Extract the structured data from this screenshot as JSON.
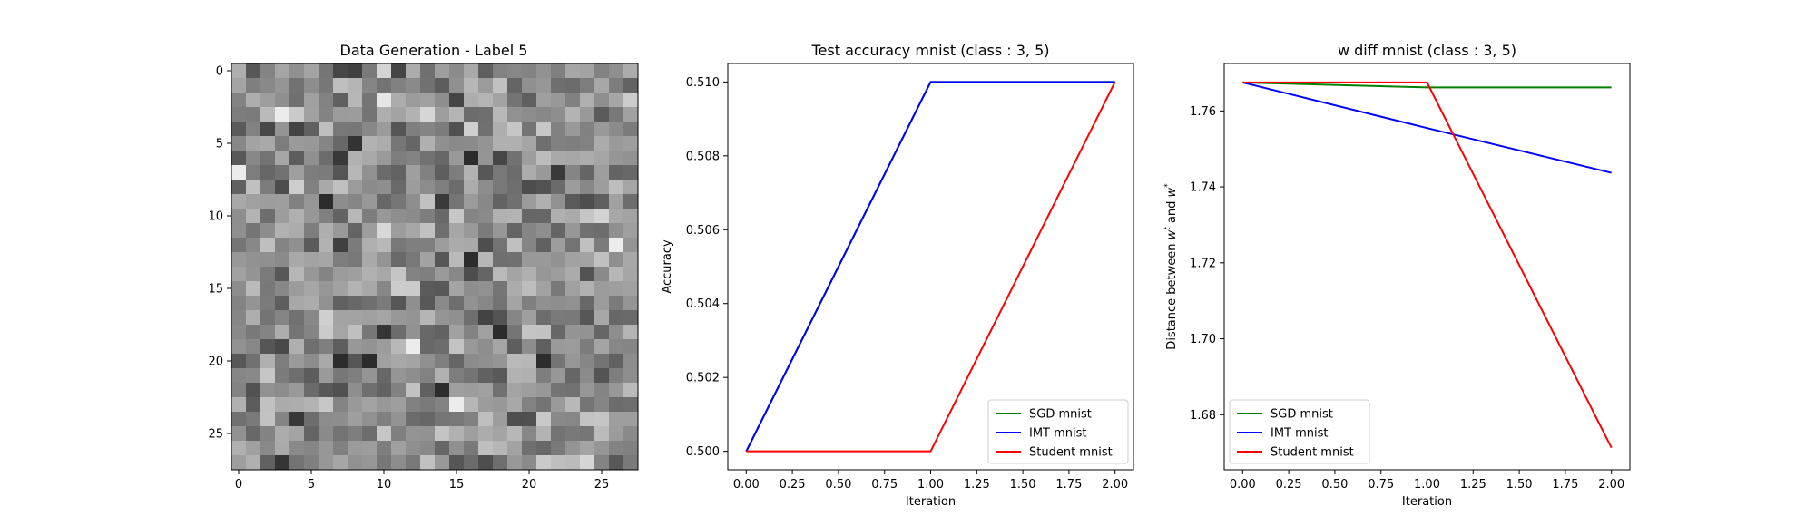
{
  "chart_data": [
    {
      "type": "heatmap",
      "title": "Data Generation - Label 5",
      "colormap": "gray",
      "rows": 28,
      "cols": 28,
      "x_ticks": [
        0,
        5,
        10,
        15,
        20,
        25
      ],
      "y_ticks": [
        0,
        5,
        10,
        15,
        20,
        25
      ],
      "darkest_cells": [
        [
          20,
          7
        ],
        [
          20,
          9
        ],
        [
          20,
          21
        ],
        [
          18,
          18
        ],
        [
          22,
          14
        ],
        [
          6,
          16
        ],
        [
          9,
          6
        ],
        [
          13,
          16
        ]
      ],
      "brightest_cells": [
        [
          7,
          0
        ],
        [
          12,
          26
        ],
        [
          19,
          12
        ],
        [
          23,
          15
        ],
        [
          3,
          3
        ]
      ]
    },
    {
      "type": "line",
      "title": "Test accuracy mnist (class : 3, 5)",
      "xlabel": "Iteration",
      "ylabel": "Accuracy",
      "x": [
        0,
        1,
        2
      ],
      "xlim": [
        -0.1,
        2.1
      ],
      "ylim": [
        0.4995,
        0.5105
      ],
      "x_ticks": [
        "0.00",
        "0.25",
        "0.50",
        "0.75",
        "1.00",
        "1.25",
        "1.50",
        "1.75",
        "2.00"
      ],
      "y_ticks": [
        "0.500",
        "0.502",
        "0.504",
        "0.506",
        "0.508",
        "0.510"
      ],
      "legend_position": "lower right",
      "series": [
        {
          "name": "SGD mnist",
          "color": "#008000",
          "values": [
            0.5,
            0.51,
            0.51
          ]
        },
        {
          "name": "IMT mnist",
          "color": "#0000ff",
          "values": [
            0.5,
            0.51,
            0.51
          ]
        },
        {
          "name": "Student mnist",
          "color": "#ff0000",
          "values": [
            0.5,
            0.5,
            0.51
          ]
        }
      ]
    },
    {
      "type": "line",
      "title": "w diff mnist (class : 3, 5)",
      "xlabel": "Iteration",
      "ylabel": "Distance between w^t and w^*",
      "x": [
        0,
        1,
        2
      ],
      "xlim": [
        -0.1,
        2.1
      ],
      "ylim": [
        1.6655,
        1.7725
      ],
      "x_ticks": [
        "0.00",
        "0.25",
        "0.50",
        "0.75",
        "1.00",
        "1.25",
        "1.50",
        "1.75",
        "2.00"
      ],
      "y_ticks": [
        "1.68",
        "1.70",
        "1.72",
        "1.74",
        "1.76"
      ],
      "legend_position": "lower left",
      "series": [
        {
          "name": "SGD mnist",
          "color": "#008000",
          "values": [
            1.7675,
            1.7662,
            1.7662
          ]
        },
        {
          "name": "IMT mnist",
          "color": "#0000ff",
          "values": [
            1.7675,
            1.7555,
            1.7437
          ]
        },
        {
          "name": "Student mnist",
          "color": "#ff0000",
          "values": [
            1.7675,
            1.7675,
            1.6713
          ]
        }
      ]
    }
  ]
}
